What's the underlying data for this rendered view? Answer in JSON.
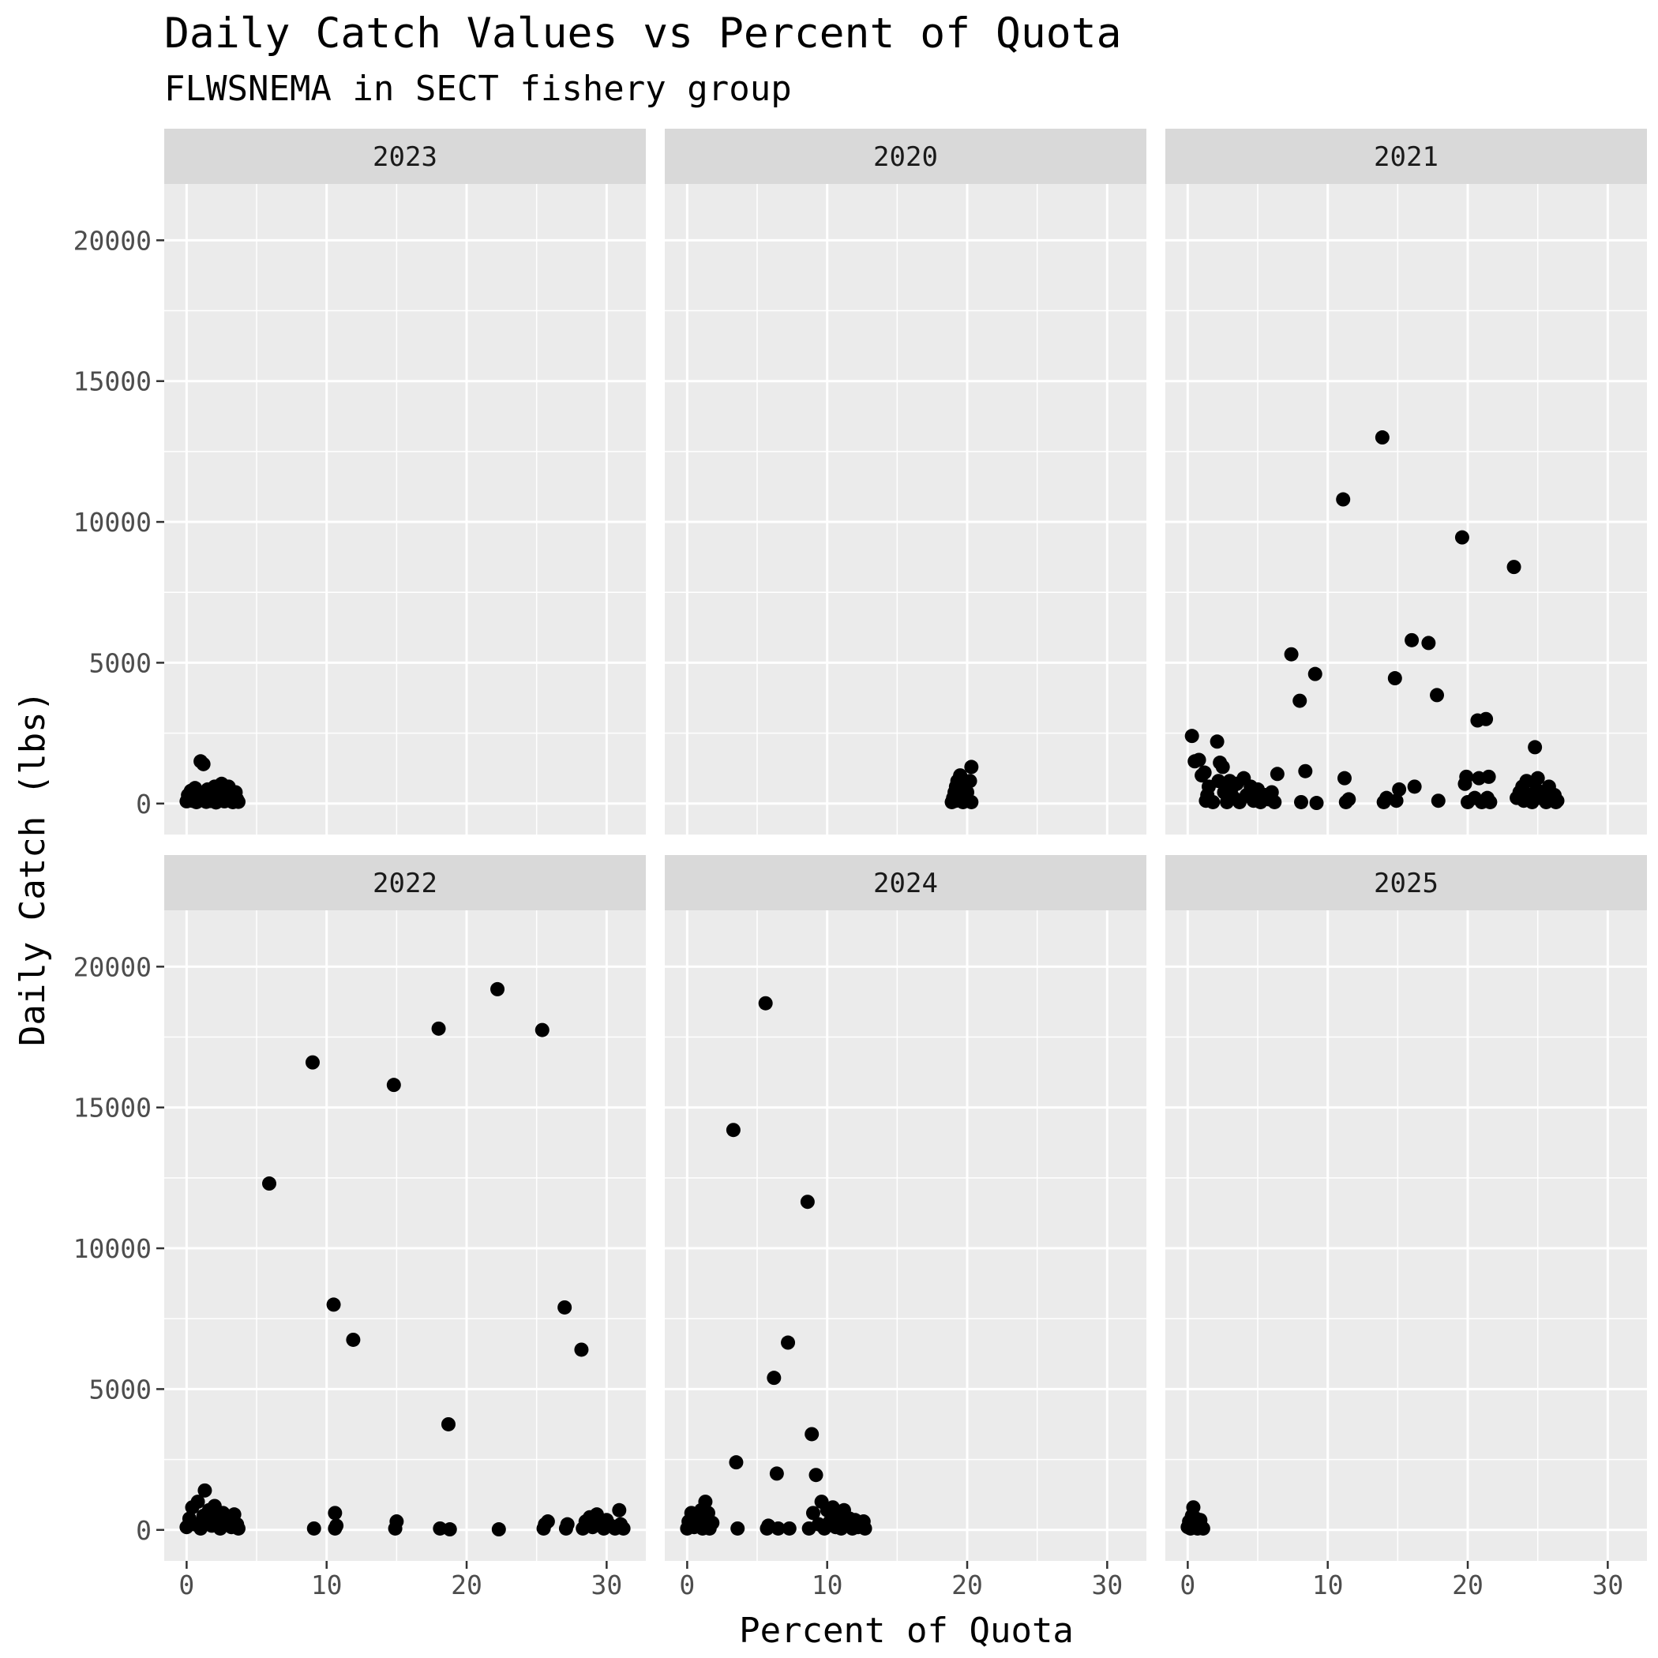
{
  "chart_data": {
    "type": "scatter",
    "title": "Daily Catch Values vs Percent of Quota",
    "subtitle": "FLWSNEMA in SECT fishery group",
    "xlabel": "Percent of Quota",
    "ylabel": "Daily Catch (lbs)",
    "xlim": [
      -1.6,
      32.8
    ],
    "ylim": [
      -1100,
      22000
    ],
    "x_ticks": [
      0,
      10,
      20,
      30
    ],
    "y_ticks": [
      0,
      5000,
      10000,
      15000,
      20000
    ],
    "grid": true,
    "panel_background": "#EBEBEB",
    "strip_background": "#D9D9D9",
    "point_color": "#000000",
    "panels": [
      {
        "label": "2023",
        "points": [
          [
            0,
            80
          ],
          [
            0.1,
            300
          ],
          [
            0.2,
            150
          ],
          [
            0.3,
            450
          ],
          [
            0.4,
            100
          ],
          [
            0.5,
            250
          ],
          [
            0.6,
            550
          ],
          [
            0.7,
            50
          ],
          [
            0.8,
            200
          ],
          [
            0.9,
            380
          ],
          [
            1.0,
            1500
          ],
          [
            1.1,
            120
          ],
          [
            1.2,
            1400
          ],
          [
            1.3,
            330
          ],
          [
            1.4,
            60
          ],
          [
            1.5,
            500
          ],
          [
            1.6,
            260
          ],
          [
            1.7,
            90
          ],
          [
            1.8,
            420
          ],
          [
            1.9,
            180
          ],
          [
            2.0,
            600
          ],
          [
            2.1,
            40
          ],
          [
            2.2,
            300
          ],
          [
            2.3,
            520
          ],
          [
            2.4,
            140
          ],
          [
            2.5,
            700
          ],
          [
            2.6,
            250
          ],
          [
            2.7,
            80
          ],
          [
            2.8,
            450
          ],
          [
            2.9,
            200
          ],
          [
            3.0,
            600
          ],
          [
            3.1,
            100
          ],
          [
            3.2,
            380
          ],
          [
            3.3,
            50
          ],
          [
            3.4,
            300
          ],
          [
            3.5,
            400
          ],
          [
            3.6,
            150
          ],
          [
            3.7,
            60
          ]
        ]
      },
      {
        "label": "2020",
        "points": [
          [
            18.9,
            50
          ],
          [
            19.0,
            200
          ],
          [
            19.1,
            400
          ],
          [
            19.2,
            600
          ],
          [
            19.2,
            100
          ],
          [
            19.3,
            800
          ],
          [
            19.4,
            300
          ],
          [
            19.5,
            1000
          ],
          [
            19.5,
            150
          ],
          [
            19.6,
            500
          ],
          [
            19.7,
            50
          ],
          [
            19.8,
            700
          ],
          [
            19.9,
            250
          ],
          [
            20.0,
            400
          ],
          [
            20.1,
            100
          ],
          [
            20.2,
            800
          ],
          [
            20.3,
            1300
          ],
          [
            20.3,
            50
          ]
        ]
      },
      {
        "label": "2021",
        "points": [
          [
            0.3,
            2400
          ],
          [
            0.5,
            1500
          ],
          [
            0.8,
            1550
          ],
          [
            1.0,
            1000
          ],
          [
            1.2,
            1100
          ],
          [
            1.3,
            100
          ],
          [
            1.4,
            300
          ],
          [
            1.5,
            600
          ],
          [
            1.8,
            50
          ],
          [
            2.1,
            2200
          ],
          [
            2.2,
            800
          ],
          [
            2.3,
            1450
          ],
          [
            2.5,
            1300
          ],
          [
            2.6,
            400
          ],
          [
            2.8,
            50
          ],
          [
            3.0,
            800
          ],
          [
            3.1,
            500
          ],
          [
            3.3,
            200
          ],
          [
            3.5,
            700
          ],
          [
            3.7,
            50
          ],
          [
            4.0,
            900
          ],
          [
            4.2,
            300
          ],
          [
            4.5,
            600
          ],
          [
            4.7,
            100
          ],
          [
            5.0,
            500
          ],
          [
            5.2,
            50
          ],
          [
            5.5,
            300
          ],
          [
            5.8,
            150
          ],
          [
            6.0,
            400
          ],
          [
            6.2,
            50
          ],
          [
            6.4,
            1050
          ],
          [
            7.4,
            5300
          ],
          [
            8.0,
            3650
          ],
          [
            8.1,
            50
          ],
          [
            8.4,
            1150
          ],
          [
            9.1,
            4600
          ],
          [
            9.2,
            20
          ],
          [
            11.1,
            10800
          ],
          [
            11.2,
            900
          ],
          [
            11.3,
            50
          ],
          [
            11.5,
            150
          ],
          [
            13.9,
            13000
          ],
          [
            14.0,
            50
          ],
          [
            14.2,
            200
          ],
          [
            14.8,
            4450
          ],
          [
            14.9,
            100
          ],
          [
            15.1,
            500
          ],
          [
            16.0,
            5800
          ],
          [
            16.2,
            600
          ],
          [
            17.2,
            5700
          ],
          [
            17.8,
            3850
          ],
          [
            17.9,
            100
          ],
          [
            19.6,
            9450
          ],
          [
            19.8,
            700
          ],
          [
            19.9,
            950
          ],
          [
            20.0,
            50
          ],
          [
            20.5,
            200
          ],
          [
            20.7,
            2950
          ],
          [
            20.8,
            900
          ],
          [
            21.0,
            50
          ],
          [
            21.3,
            3000
          ],
          [
            21.4,
            200
          ],
          [
            21.5,
            950
          ],
          [
            21.6,
            50
          ],
          [
            23.3,
            8400
          ],
          [
            23.5,
            200
          ],
          [
            23.7,
            400
          ],
          [
            23.9,
            600
          ],
          [
            24.0,
            100
          ],
          [
            24.2,
            800
          ],
          [
            24.4,
            300
          ],
          [
            24.6,
            50
          ],
          [
            24.8,
            2000
          ],
          [
            24.9,
            500
          ],
          [
            25.0,
            900
          ],
          [
            25.2,
            200
          ],
          [
            25.4,
            400
          ],
          [
            25.6,
            50
          ],
          [
            25.8,
            600
          ],
          [
            26.0,
            150
          ],
          [
            26.2,
            300
          ],
          [
            26.3,
            50
          ],
          [
            26.4,
            100
          ]
        ]
      },
      {
        "label": "2022",
        "points": [
          [
            0,
            100
          ],
          [
            0.2,
            400
          ],
          [
            0.4,
            800
          ],
          [
            0.6,
            200
          ],
          [
            0.8,
            1000
          ],
          [
            1.0,
            50
          ],
          [
            1.2,
            500
          ],
          [
            1.3,
            1400
          ],
          [
            1.4,
            300
          ],
          [
            1.6,
            700
          ],
          [
            1.8,
            150
          ],
          [
            2.0,
            850
          ],
          [
            2.2,
            400
          ],
          [
            2.4,
            50
          ],
          [
            2.6,
            600
          ],
          [
            2.8,
            250
          ],
          [
            3.0,
            450
          ],
          [
            3.2,
            100
          ],
          [
            3.4,
            550
          ],
          [
            3.6,
            200
          ],
          [
            3.7,
            50
          ],
          [
            5.9,
            12300
          ],
          [
            9.0,
            16600
          ],
          [
            9.1,
            50
          ],
          [
            10.5,
            8000
          ],
          [
            10.6,
            50
          ],
          [
            10.6,
            600
          ],
          [
            10.7,
            150
          ],
          [
            11.9,
            6750
          ],
          [
            14.8,
            15800
          ],
          [
            14.9,
            50
          ],
          [
            15.0,
            300
          ],
          [
            18.0,
            17800
          ],
          [
            18.1,
            50
          ],
          [
            18.7,
            3750
          ],
          [
            18.8,
            20
          ],
          [
            22.2,
            19200
          ],
          [
            22.3,
            20
          ],
          [
            25.4,
            17750
          ],
          [
            25.5,
            50
          ],
          [
            25.6,
            200
          ],
          [
            25.8,
            300
          ],
          [
            27.0,
            7900
          ],
          [
            27.1,
            50
          ],
          [
            27.2,
            200
          ],
          [
            28.2,
            6400
          ],
          [
            28.3,
            50
          ],
          [
            28.5,
            300
          ],
          [
            28.8,
            450
          ],
          [
            29.0,
            100
          ],
          [
            29.3,
            550
          ],
          [
            29.5,
            200
          ],
          [
            29.8,
            50
          ],
          [
            30.0,
            350
          ],
          [
            30.3,
            150
          ],
          [
            30.6,
            50
          ],
          [
            30.9,
            700
          ],
          [
            31.0,
            200
          ],
          [
            31.2,
            50
          ]
        ]
      },
      {
        "label": "2024",
        "points": [
          [
            0,
            50
          ],
          [
            0.1,
            300
          ],
          [
            0.3,
            600
          ],
          [
            0.5,
            100
          ],
          [
            0.7,
            450
          ],
          [
            0.9,
            200
          ],
          [
            1.0,
            700
          ],
          [
            1.1,
            50
          ],
          [
            1.2,
            350
          ],
          [
            1.3,
            1000
          ],
          [
            1.4,
            150
          ],
          [
            1.5,
            600
          ],
          [
            1.6,
            50
          ],
          [
            1.8,
            250
          ],
          [
            3.3,
            14200
          ],
          [
            3.5,
            2400
          ],
          [
            3.6,
            50
          ],
          [
            5.6,
            18700
          ],
          [
            5.7,
            50
          ],
          [
            5.8,
            150
          ],
          [
            6.2,
            5400
          ],
          [
            6.4,
            2000
          ],
          [
            6.5,
            50
          ],
          [
            7.2,
            6650
          ],
          [
            7.3,
            50
          ],
          [
            8.6,
            11650
          ],
          [
            8.7,
            50
          ],
          [
            8.9,
            3400
          ],
          [
            9.0,
            600
          ],
          [
            9.2,
            1950
          ],
          [
            9.4,
            200
          ],
          [
            9.6,
            1000
          ],
          [
            9.8,
            50
          ],
          [
            10.0,
            700
          ],
          [
            10.2,
            300
          ],
          [
            10.4,
            800
          ],
          [
            10.6,
            100
          ],
          [
            10.8,
            500
          ],
          [
            11.0,
            50
          ],
          [
            11.2,
            700
          ],
          [
            11.4,
            200
          ],
          [
            11.6,
            400
          ],
          [
            11.8,
            50
          ],
          [
            12.0,
            350
          ],
          [
            12.2,
            100
          ],
          [
            12.4,
            200
          ],
          [
            12.6,
            300
          ],
          [
            12.7,
            50
          ]
        ]
      },
      {
        "label": "2025",
        "points": [
          [
            0,
            100
          ],
          [
            0.1,
            300
          ],
          [
            0.2,
            50
          ],
          [
            0.3,
            500
          ],
          [
            0.4,
            800
          ],
          [
            0.5,
            200
          ],
          [
            0.6,
            400
          ],
          [
            0.7,
            50
          ],
          [
            0.8,
            250
          ],
          [
            0.9,
            350
          ],
          [
            1.0,
            100
          ],
          [
            1.1,
            50
          ]
        ]
      }
    ]
  }
}
